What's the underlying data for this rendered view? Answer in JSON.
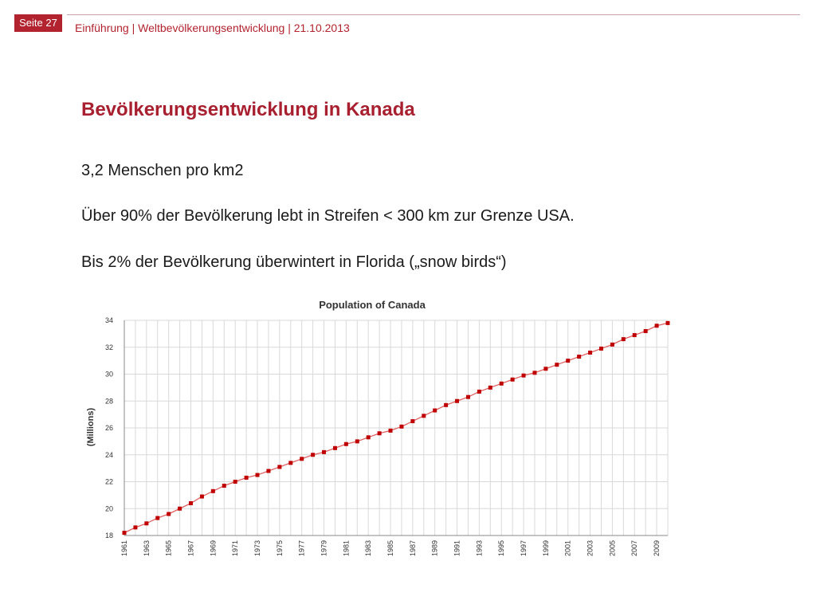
{
  "header": {
    "page_label": "Seite 27",
    "breadcrumb": "Einführung | Weltbevölkerungsentwicklung | 21.10.2013"
  },
  "slide": {
    "title": "Bevölkerungsentwicklung in Kanada",
    "bullets": [
      "3,2 Menschen pro km2",
      "Über 90% der Bevölkerung lebt in Streifen < 300 km zur Grenze USA.",
      "Bis 2% der Bevölkerung überwintert in Florida („snow birds“)"
    ]
  },
  "colors": {
    "accent": "#b3232f",
    "title": "#a8202f",
    "line": "#e06060",
    "marker": "#c00000",
    "grid": "#d9d9d9"
  },
  "chart_data": {
    "type": "line",
    "title": "Population of Canada",
    "ylabel": "(Millions)",
    "xlabel": "",
    "ylim": [
      18,
      34
    ],
    "yticks": [
      18,
      20,
      22,
      24,
      26,
      28,
      30,
      32,
      34
    ],
    "xtick_labels": [
      "1961",
      "1963",
      "1965",
      "1967",
      "1969",
      "1971",
      "1973",
      "1975",
      "1977",
      "1979",
      "1981",
      "1983",
      "1985",
      "1987",
      "1989",
      "1991",
      "1993",
      "1995",
      "1997",
      "1999",
      "2001",
      "2003",
      "2005",
      "2007",
      "2009"
    ],
    "grid": true,
    "legend": "none",
    "x": [
      1961,
      1962,
      1963,
      1964,
      1965,
      1966,
      1967,
      1968,
      1969,
      1970,
      1971,
      1972,
      1973,
      1974,
      1975,
      1976,
      1977,
      1978,
      1979,
      1980,
      1981,
      1982,
      1983,
      1984,
      1985,
      1986,
      1987,
      1988,
      1989,
      1990,
      1991,
      1992,
      1993,
      1994,
      1995,
      1996,
      1997,
      1998,
      1999,
      2000,
      2001,
      2002,
      2003,
      2004,
      2005,
      2006,
      2007,
      2008,
      2009,
      2010
    ],
    "values": [
      18.2,
      18.6,
      18.9,
      19.3,
      19.6,
      20.0,
      20.4,
      20.9,
      21.3,
      21.7,
      22.0,
      22.3,
      22.5,
      22.8,
      23.1,
      23.4,
      23.7,
      24.0,
      24.2,
      24.5,
      24.8,
      25.0,
      25.3,
      25.6,
      25.8,
      26.1,
      26.5,
      26.9,
      27.3,
      27.7,
      28.0,
      28.3,
      28.7,
      29.0,
      29.3,
      29.6,
      29.9,
      30.1,
      30.4,
      30.7,
      31.0,
      31.3,
      31.6,
      31.9,
      32.2,
      32.6,
      32.9,
      33.2,
      33.6,
      33.8
    ]
  }
}
